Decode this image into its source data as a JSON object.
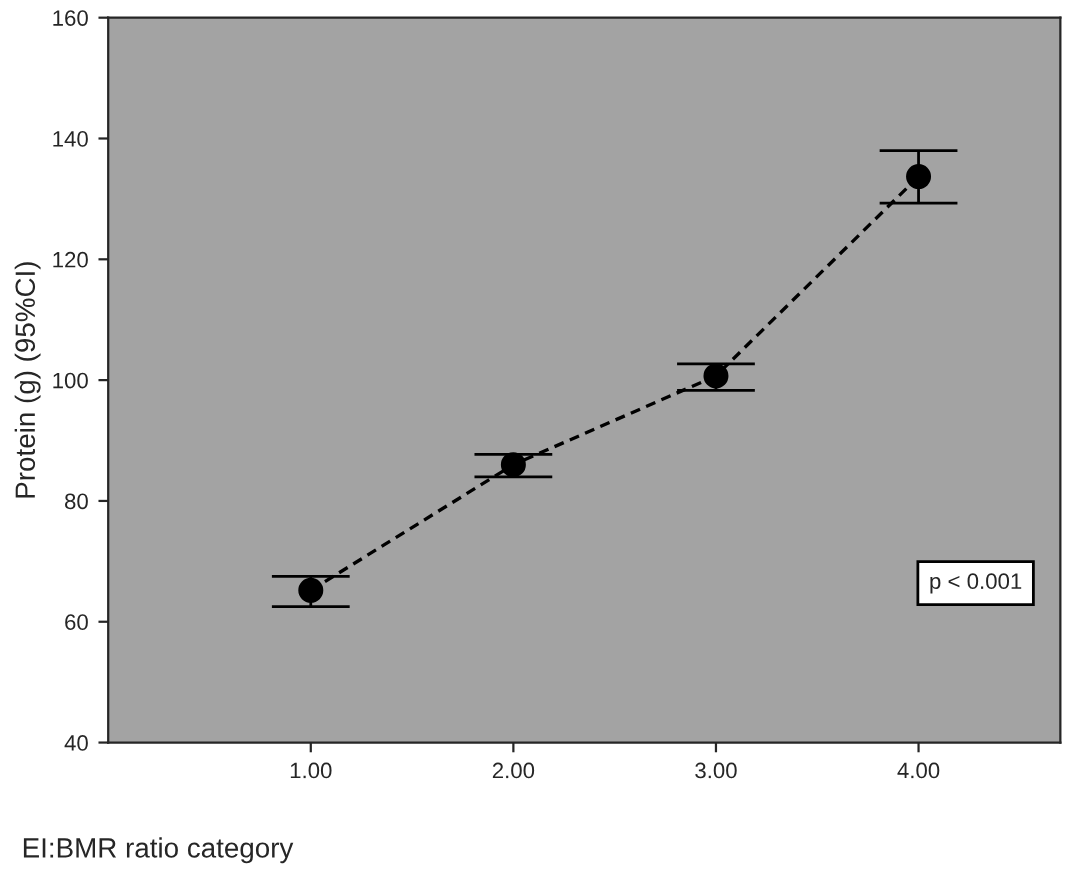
{
  "chart_data": {
    "type": "line",
    "xlabel": "EI:BMR ratio category",
    "ylabel": "Protein (g) (95%CI)",
    "x": [
      1,
      2,
      3,
      4
    ],
    "series": [
      {
        "color": "#000000",
        "values": [
          65.2,
          86,
          100.7,
          133.7
        ],
        "errors": [
          [
            62.5,
            67.5
          ],
          [
            84,
            87.7
          ],
          [
            98.3,
            102.7
          ],
          [
            129.3,
            138
          ]
        ]
      }
    ],
    "xlim": [
      0,
      4.7
    ],
    "xticks": [
      {
        "value": 1,
        "label": "1.00"
      },
      {
        "value": 2,
        "label": "2.00"
      },
      {
        "value": 3,
        "label": "3.00"
      },
      {
        "value": 4,
        "label": "4.00"
      }
    ],
    "ylim": [
      40,
      160
    ],
    "yticks": [
      40,
      60,
      80,
      100,
      120,
      140,
      160
    ],
    "marker": "circle",
    "line_style": "dashed",
    "grid": false,
    "annotations": [
      "p < 0.001"
    ]
  }
}
